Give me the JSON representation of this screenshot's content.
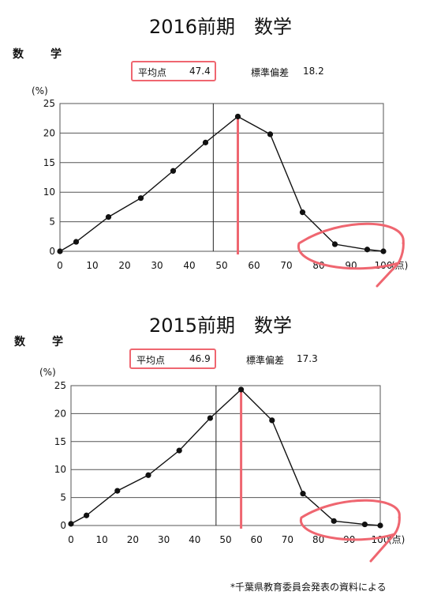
{
  "chart_data": [
    {
      "type": "line",
      "title": "2016前期　数学",
      "subject": "数　学",
      "mean_label": "平均点",
      "mean_value": "47.4",
      "sd_label": "標準偏差",
      "sd_value": "18.2",
      "ylabel": "(%)",
      "xunit": "(点)",
      "ylim": [
        0,
        25
      ],
      "xlim": [
        0,
        100
      ],
      "yticks": [
        "0",
        "5",
        "10",
        "15",
        "20",
        "25"
      ],
      "xticks": [
        "0",
        "10",
        "20",
        "30",
        "40",
        "50",
        "60",
        "70",
        "80",
        "90",
        "100"
      ],
      "grid": true,
      "mean_line_x": 47.4,
      "highlight_x": 55,
      "x": [
        0,
        5,
        15,
        25,
        35,
        45,
        55,
        65,
        75,
        85,
        95,
        100
      ],
      "values": [
        0,
        1.6,
        5.8,
        9.0,
        13.6,
        18.4,
        22.8,
        19.8,
        6.6,
        1.2,
        0.3,
        0
      ]
    },
    {
      "type": "line",
      "title": "2015前期　数学",
      "subject": "数　学",
      "mean_label": "平均点",
      "mean_value": "46.9",
      "sd_label": "標準偏差",
      "sd_value": "17.3",
      "ylabel": "(%)",
      "xunit": "(点)",
      "ylim": [
        0,
        25
      ],
      "xlim": [
        0,
        100
      ],
      "yticks": [
        "0",
        "5",
        "10",
        "15",
        "20",
        "25"
      ],
      "xticks": [
        "0",
        "10",
        "20",
        "30",
        "40",
        "50",
        "60",
        "70",
        "80",
        "90",
        "100"
      ],
      "grid": true,
      "mean_line_x": 46.9,
      "highlight_x": 55,
      "x": [
        0,
        5,
        15,
        25,
        35,
        45,
        55,
        65,
        75,
        85,
        95,
        100
      ],
      "values": [
        0.3,
        1.8,
        6.2,
        9.0,
        13.4,
        19.2,
        24.3,
        18.8,
        5.7,
        0.8,
        0.2,
        0
      ]
    }
  ],
  "footnote": "*千葉県教育委員会発表の資料による",
  "colors": {
    "highlight": "#ef6670",
    "line": "#111111",
    "grid": "#555555"
  }
}
